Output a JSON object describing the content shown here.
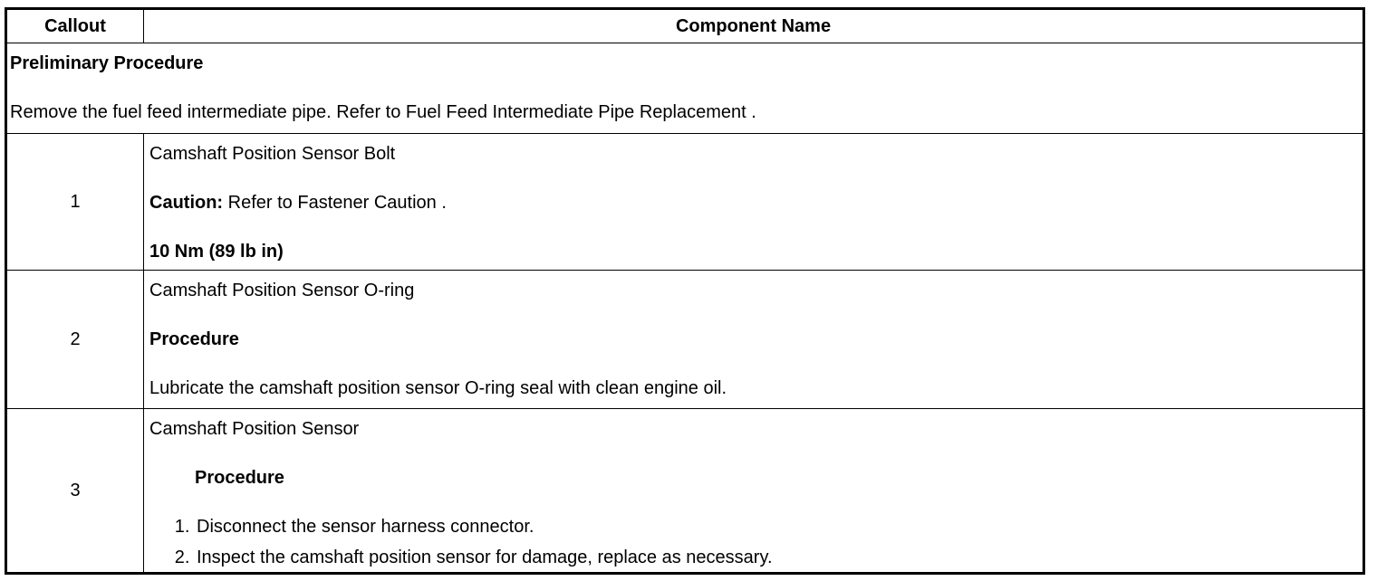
{
  "table": {
    "headers": [
      "Callout",
      "Component Name"
    ],
    "preliminary": {
      "title": "Preliminary Procedure",
      "text": "Remove the fuel feed intermediate pipe. Refer to Fuel Feed Intermediate Pipe Replacement ."
    },
    "rows": [
      {
        "callout": "1",
        "name": "Camshaft Position Sensor Bolt",
        "caution_label": "Caution:",
        "caution_text": " Refer to Fastener Caution .",
        "torque": "10 Nm (89 lb in)"
      },
      {
        "callout": "2",
        "name": "Camshaft Position Sensor O-ring",
        "procedure_label": "Procedure",
        "procedure_text": "Lubricate the camshaft position sensor O-ring seal with clean engine oil."
      },
      {
        "callout": "3",
        "name": "Camshaft Position Sensor",
        "procedure_label": "Procedure",
        "steps": [
          "Disconnect the sensor harness connector.",
          "Inspect the camshaft position sensor for damage, replace as necessary."
        ]
      }
    ]
  }
}
